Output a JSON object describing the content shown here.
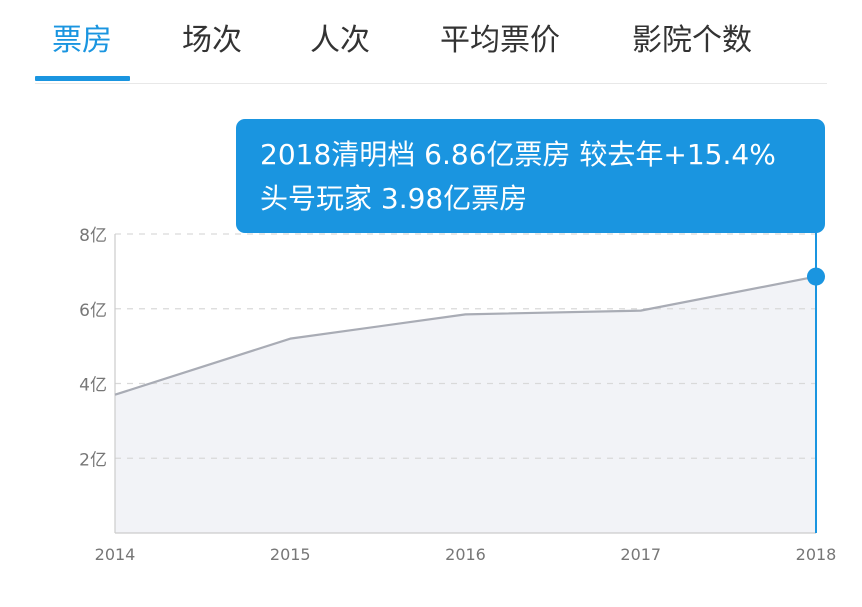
{
  "tabs": [
    {
      "label": "票房",
      "active": true
    },
    {
      "label": "场次",
      "active": false
    },
    {
      "label": "人次",
      "active": false
    },
    {
      "label": "平均票价",
      "active": false
    },
    {
      "label": "影院个数",
      "active": false
    }
  ],
  "tooltip": {
    "line1": "2018清明档 6.86亿票房 较去年+15.4%",
    "line2": "头号玩家 3.98亿票房"
  },
  "colors": {
    "accent": "#1a95e0",
    "line": "#a9acb5",
    "area": "#f2f3f7",
    "grid": "#d9d9d9",
    "axis_text": "#777777"
  },
  "chart_data": {
    "type": "area",
    "x": [
      "2014",
      "2015",
      "2016",
      "2017",
      "2018"
    ],
    "series": [
      {
        "values": [
          3.7,
          5.2,
          5.85,
          5.95,
          6.86
        ]
      }
    ],
    "ylim": [
      0,
      8
    ],
    "y_ticks": [
      2,
      4,
      6,
      8
    ],
    "y_tick_labels": [
      "2亿",
      "4亿",
      "6亿",
      "8亿"
    ],
    "grid": true,
    "highlight": {
      "x": "2018",
      "value": 6.86
    }
  }
}
